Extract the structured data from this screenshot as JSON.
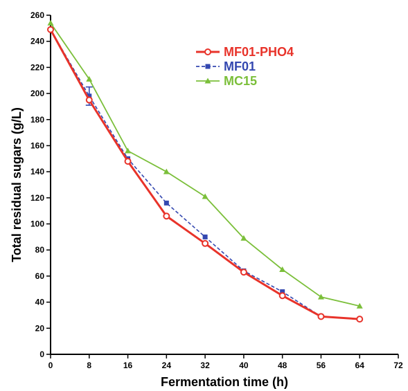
{
  "chart_data": {
    "type": "line",
    "xlabel": "Fermentation time (h)",
    "ylabel": "Total residual sugars (g/L)",
    "xlim": [
      0,
      72
    ],
    "ylim": [
      0,
      260
    ],
    "xticks": [
      0,
      8,
      16,
      24,
      32,
      40,
      48,
      56,
      64,
      72
    ],
    "yticks": [
      0,
      20,
      40,
      60,
      80,
      100,
      120,
      140,
      160,
      180,
      200,
      220,
      240,
      260
    ],
    "grid": false,
    "legend_position": "top-right",
    "x": [
      0,
      8,
      16,
      24,
      32,
      40,
      48,
      56,
      64
    ],
    "series": [
      {
        "name": "MF01-PHO4",
        "color": "#e8332a",
        "marker": "circle",
        "line": "solid",
        "values": [
          249,
          195,
          148,
          106,
          85,
          63,
          45,
          29,
          27
        ]
      },
      {
        "name": "MF01",
        "color": "#3448b0",
        "marker": "square",
        "line": "dashed",
        "values": [
          249,
          198,
          150,
          116,
          90,
          64,
          48,
          29,
          27
        ],
        "error": [
          0,
          7,
          0,
          0,
          0,
          0,
          0,
          0,
          0
        ]
      },
      {
        "name": "MC15",
        "color": "#7bbf3a",
        "marker": "triangle",
        "line": "solid",
        "values": [
          254,
          211,
          156,
          140,
          121,
          89,
          65,
          44,
          37
        ]
      }
    ]
  }
}
